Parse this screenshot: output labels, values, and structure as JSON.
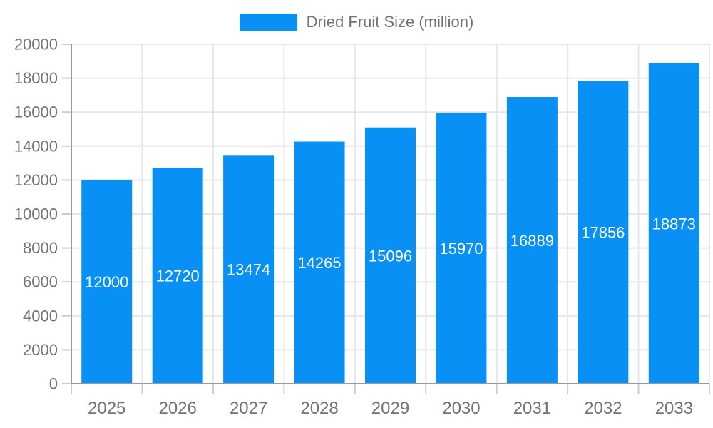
{
  "chart_data": {
    "type": "bar",
    "title": "Dried Fruit Size (million)",
    "legend": [
      "Dried Fruit Size (million)"
    ],
    "legend_position": "top",
    "categories": [
      "2025",
      "2026",
      "2027",
      "2028",
      "2029",
      "2030",
      "2031",
      "2032",
      "2033"
    ],
    "values": [
      12000,
      12720,
      13474,
      14265,
      15096,
      15970,
      16889,
      17856,
      18873
    ],
    "xlabel": "",
    "ylabel": "",
    "ylim": [
      0,
      20000
    ],
    "ytick_step": 2000,
    "ytick_labels": [
      "0",
      "2000",
      "4000",
      "6000",
      "8000",
      "10000",
      "12000",
      "14000",
      "16000",
      "18000",
      "20000"
    ],
    "grid": true,
    "value_labels_position": "inside-middle",
    "colors": {
      "bar": "#0890f5",
      "value_label": "#ffffff",
      "axis_text": "#737373",
      "axis_line": "#999999",
      "grid_line": "#e6e6e6",
      "tick_line": "#cccccc",
      "background": "#ffffff"
    }
  }
}
